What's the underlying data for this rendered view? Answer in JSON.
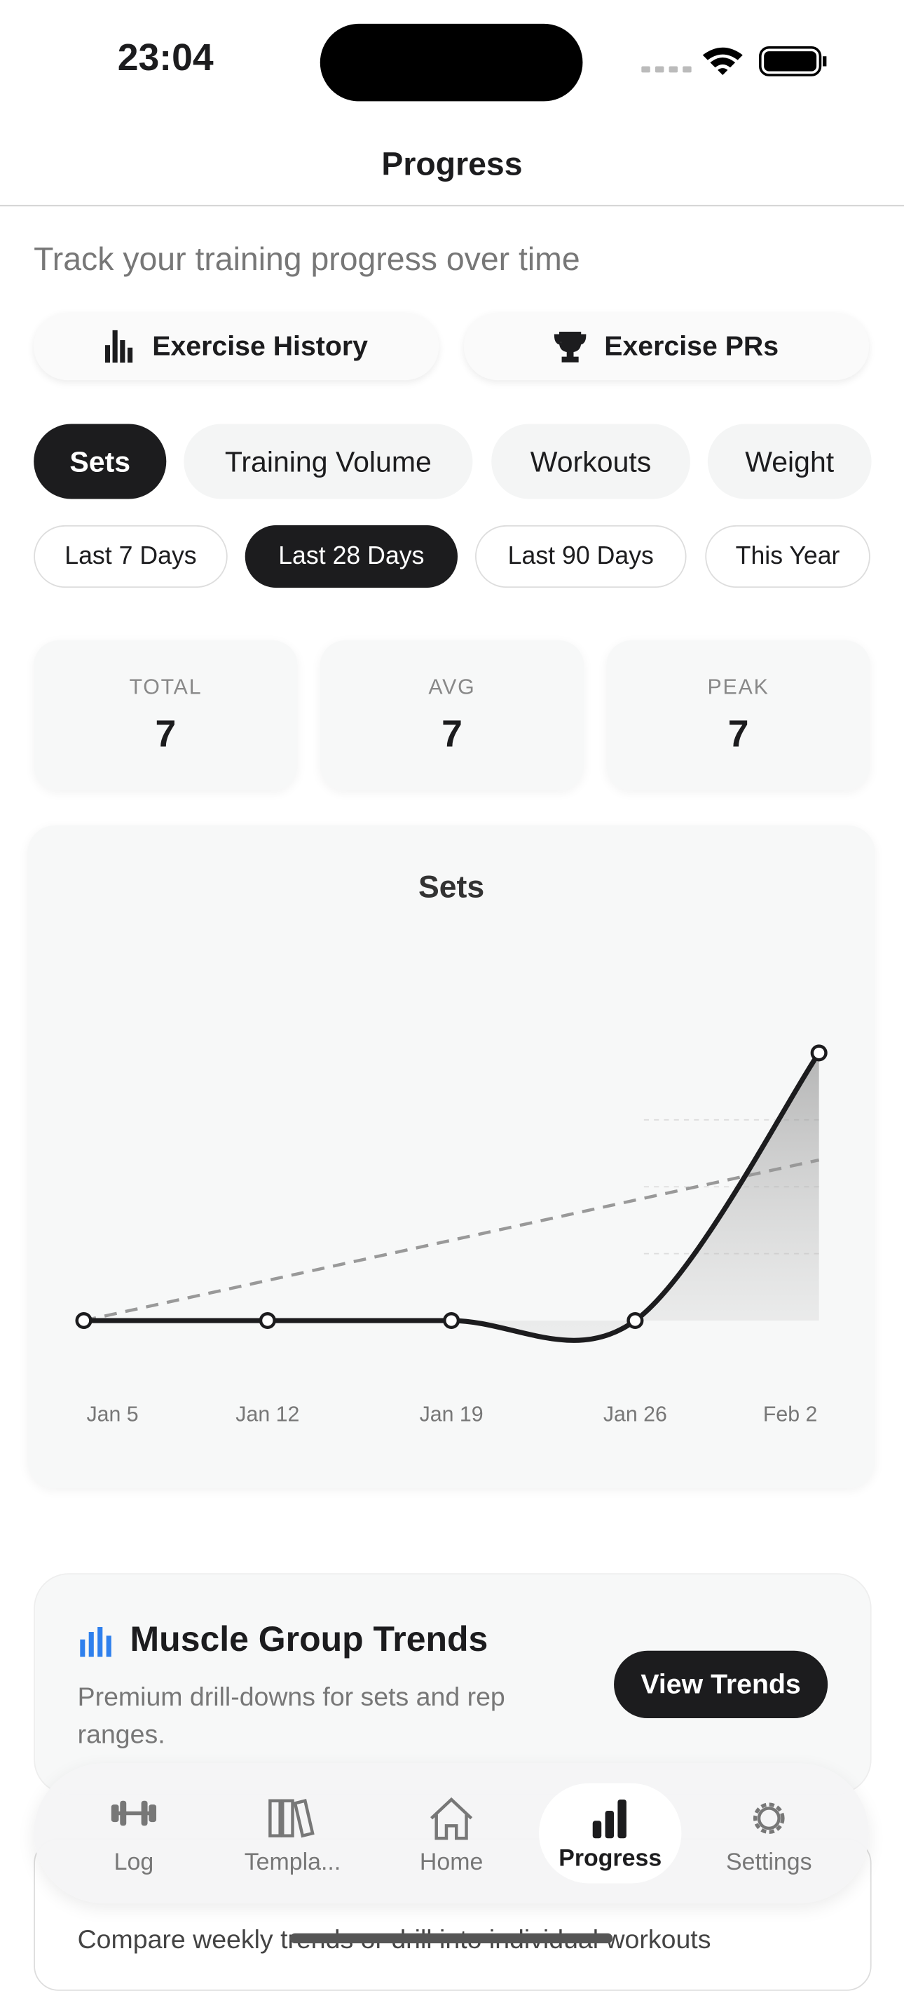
{
  "status_bar": {
    "time": "23:04"
  },
  "header": {
    "title": "Progress"
  },
  "subtitle": "Track your training progress over time",
  "nav_buttons": [
    "Exercise History",
    "Exercise PRs"
  ],
  "metric_tabs": {
    "items": [
      "Sets",
      "Training Volume",
      "Workouts",
      "Weight"
    ],
    "selected": 0
  },
  "range_tabs": {
    "items": [
      "Last 7 Days",
      "Last 28 Days",
      "Last 90 Days",
      "This Year"
    ],
    "selected": 1
  },
  "stats": [
    {
      "label": "TOTAL",
      "value": 7
    },
    {
      "label": "AVG",
      "value": 7
    },
    {
      "label": "PEAK",
      "value": 7
    }
  ],
  "chart_data": {
    "type": "line",
    "title": "Sets",
    "categories": [
      "Jan 5",
      "Jan 12",
      "Jan 19",
      "Jan 26",
      "Feb 2"
    ],
    "values": [
      0,
      0,
      0,
      0,
      7
    ],
    "color": "#1c1c1e",
    "trend": [
      0,
      4.2
    ]
  },
  "promo": {
    "title": "Muscle Group Trends",
    "text": "Premium drill-downs for sets and rep ranges.",
    "button": "View Trends"
  },
  "footer_text": "Compare weekly trends or drill into individual workouts",
  "tab_bar": {
    "items": [
      "Log",
      "Templa...",
      "Home",
      "Progress",
      "Settings"
    ],
    "selected": 3
  }
}
